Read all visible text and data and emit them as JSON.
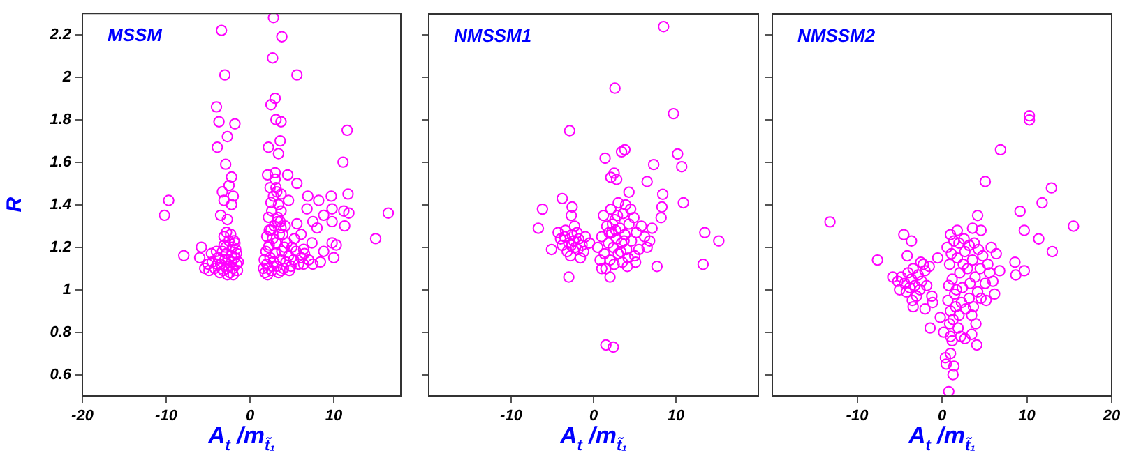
{
  "chart_data": [
    {
      "type": "scatter",
      "title": "MSSM",
      "xlabel": "A$_{t}$ /m$_{t̃₁}$",
      "ylabel": "R",
      "xlim": [
        -20,
        18
      ],
      "ylim": [
        0.5,
        2.3
      ],
      "xticks": [
        -20,
        -10,
        0,
        10
      ],
      "yticks": [
        0.6,
        0.8,
        1,
        1.2,
        1.4,
        1.6,
        1.8,
        2,
        2.2
      ],
      "grid": false,
      "legend": false,
      "marker": "circle",
      "series": [
        {
          "color": "#ff00ff",
          "x": [
            -3.4,
            2.8,
            3.8,
            2.7,
            -3.0,
            5.6,
            -4.0,
            3.0,
            2.5,
            -3.7,
            -1.8,
            3.1,
            3.7,
            -2.7,
            11.6,
            -3.9,
            2.2,
            3.6,
            3.4,
            -2.9,
            11.1,
            -2.2,
            2.1,
            4.5,
            3.0,
            -9.7,
            -10.2,
            -3.3,
            -2.5,
            -2.0,
            -3.1,
            -3.5,
            -2.7,
            -2.2,
            5.6,
            6.9,
            8.2,
            9.7,
            4.6,
            11.7,
            16.5,
            9.8,
            11.2,
            11.8,
            6.8,
            8.8,
            9.8,
            11.3,
            7.5,
            8.0,
            5.6,
            6.1,
            3.7,
            2.2,
            3.3,
            2.3,
            3.7,
            3.7,
            2.5,
            3.1,
            15.0,
            9.8,
            10.3,
            8.8,
            7.4,
            6.4,
            10.0,
            8.4,
            7.5,
            6.4,
            -7.9,
            -5.8,
            -6.0,
            -5.4,
            -2.8,
            -3.1,
            -1.8,
            -4.5,
            -4.2,
            -3.8,
            -3.5,
            -3.2,
            -3.0,
            -2.8,
            -2.6,
            -2.4,
            -2.2,
            -2.0,
            -1.8,
            -1.6,
            -1.5,
            -1.7,
            -2.1,
            -2.5,
            -2.9,
            -3.3,
            -3.6,
            -2.7,
            -2.0,
            -1.4,
            -3.9,
            -4.6,
            -5.0,
            -4.0,
            -3.1,
            -2.3,
            -1.9,
            -2.6,
            -3.4,
            -2.8,
            -2.2,
            -1.6,
            -4.9,
            1.8,
            2.0,
            2.2,
            2.4,
            2.6,
            2.8,
            3.0,
            3.2,
            3.4,
            3.6,
            3.8,
            4.0,
            4.3,
            4.6,
            4.9,
            5.2,
            5.5,
            5.8,
            6.1,
            1.7,
            1.9,
            2.3,
            2.7,
            3.1,
            3.5,
            2.5,
            2.9,
            3.3,
            2.6,
            3.4,
            2.8,
            3.2,
            2.4,
            3.0,
            2.2,
            4.1,
            4.4,
            5.0,
            5.3,
            3.7,
            4.7,
            2.1,
            3.9,
            2.0,
            1.6,
            6.5,
            7.0,
            4.2,
            3.6
          ],
          "values": [
            2.22,
            2.28,
            2.19,
            2.09,
            2.01,
            2.01,
            1.86,
            1.9,
            1.87,
            1.79,
            1.78,
            1.8,
            1.79,
            1.72,
            1.75,
            1.67,
            1.67,
            1.7,
            1.64,
            1.59,
            1.6,
            1.53,
            1.54,
            1.54,
            1.55,
            1.42,
            1.35,
            1.46,
            1.49,
            1.44,
            1.42,
            1.35,
            1.33,
            1.4,
            1.5,
            1.44,
            1.42,
            1.44,
            1.42,
            1.45,
            1.36,
            1.38,
            1.37,
            1.36,
            1.38,
            1.35,
            1.32,
            1.3,
            1.32,
            1.29,
            1.31,
            1.26,
            1.37,
            1.34,
            1.32,
            1.28,
            1.29,
            1.45,
            1.41,
            1.48,
            1.24,
            1.22,
            1.21,
            1.18,
            1.22,
            1.19,
            1.15,
            1.13,
            1.12,
            1.12,
            1.16,
            1.2,
            1.15,
            1.1,
            1.27,
            1.21,
            1.22,
            1.13,
            1.1,
            1.15,
            1.12,
            1.09,
            1.14,
            1.17,
            1.11,
            1.08,
            1.13,
            1.1,
            1.15,
            1.12,
            1.09,
            1.19,
            1.2,
            1.23,
            1.2,
            1.18,
            1.08,
            1.07,
            1.07,
            1.13,
            1.12,
            1.17,
            1.12,
            1.18,
            1.25,
            1.26,
            1.23,
            1.14,
            1.1,
            1.1,
            1.16,
            1.17,
            1.09,
            1.08,
            1.12,
            1.1,
            1.15,
            1.09,
            1.13,
            1.17,
            1.11,
            1.08,
            1.14,
            1.18,
            1.1,
            1.13,
            1.16,
            1.11,
            1.14,
            1.18,
            1.12,
            1.15,
            1.14,
            1.18,
            1.21,
            1.24,
            1.22,
            1.26,
            1.28,
            1.3,
            1.34,
            1.37,
            1.4,
            1.44,
            1.46,
            1.48,
            1.52,
            1.2,
            1.2,
            1.22,
            1.2,
            1.24,
            1.09,
            1.09,
            1.07,
            1.26,
            1.25,
            1.1,
            1.17,
            1.14,
            1.3,
            1.32
          ]
        }
      ]
    },
    {
      "type": "scatter",
      "title": "NMSSM1",
      "xlabel": "A$_{t}$ /m$_{t̃₁}$",
      "xlim": [
        -20,
        20
      ],
      "ylim": [
        0.5,
        2.3
      ],
      "xticks": [
        -10,
        0,
        10
      ],
      "yticks": [
        0.6,
        0.8,
        1,
        1.2,
        1.4,
        1.6,
        1.8,
        2,
        2.2
      ],
      "tick_labels": "x",
      "grid": false,
      "legend": false,
      "marker": "circle",
      "series": [
        {
          "color": "#ff00ff",
          "x": [
            8.5,
            2.6,
            9.7,
            -2.9,
            3.4,
            3.8,
            1.4,
            10.2,
            7.3,
            10.7,
            2.1,
            2.5,
            2.8,
            6.5,
            8.4,
            -3.8,
            4.3,
            10.9,
            -6.2,
            -2.6,
            -2.7,
            -6.7,
            -4.3,
            -5.1,
            13.5,
            15.2,
            13.3,
            7.7,
            -3.0,
            2.0,
            1.5,
            2.4,
            8.2,
            7.1,
            8.3,
            6.5,
            6.8,
            5.1,
            4.1,
            1.0,
            -3.5,
            -3.0,
            -2.6,
            -2.2,
            -1.8,
            -1.4,
            -3.2,
            -2.4,
            -2.0,
            -1.2,
            -3.8,
            -2.8,
            -1.6,
            -2.3,
            -1.0,
            -3.4,
            -4.0,
            -1.9,
            -2.7,
            -0.5,
            0.5,
            1.0,
            1.3,
            1.6,
            1.8,
            2.0,
            2.2,
            2.4,
            2.6,
            2.8,
            3.0,
            3.2,
            3.4,
            3.6,
            3.8,
            4.0,
            4.3,
            4.6,
            4.9,
            5.2,
            5.5,
            5.8,
            1.2,
            2.1,
            3.0,
            3.9,
            4.5,
            5.0,
            2.5,
            3.5,
            1.5,
            4.2,
            0.8,
            2.9,
            2.3,
            3.3,
            1.9,
            2.7,
            3.7,
            6.2
          ],
          "values": [
            2.24,
            1.95,
            1.83,
            1.75,
            1.65,
            1.66,
            1.62,
            1.64,
            1.59,
            1.58,
            1.53,
            1.55,
            1.52,
            1.51,
            1.45,
            1.43,
            1.46,
            1.41,
            1.38,
            1.39,
            1.35,
            1.29,
            1.27,
            1.19,
            1.27,
            1.23,
            1.12,
            1.11,
            1.06,
            1.06,
            0.74,
            0.73,
            1.34,
            1.29,
            1.39,
            1.2,
            1.23,
            1.13,
            1.11,
            1.1,
            1.25,
            1.22,
            1.26,
            1.2,
            1.24,
            1.21,
            1.18,
            1.23,
            1.27,
            1.18,
            1.21,
            1.16,
            1.15,
            1.3,
            1.25,
            1.28,
            1.24,
            1.19,
            1.21,
            1.22,
            1.2,
            1.25,
            1.17,
            1.3,
            1.22,
            1.14,
            1.27,
            1.2,
            1.33,
            1.24,
            1.17,
            1.29,
            1.22,
            1.36,
            1.26,
            1.19,
            1.31,
            1.23,
            1.34,
            1.27,
            1.19,
            1.3,
            1.35,
            1.38,
            1.41,
            1.4,
            1.38,
            1.16,
            1.12,
            1.13,
            1.1,
            1.15,
            1.14,
            1.35,
            1.31,
            1.18,
            1.27,
            1.28,
            1.23,
            1.25
          ]
        }
      ]
    },
    {
      "type": "scatter",
      "title": "NMSSM2",
      "xlabel": "A$_{t}$ /m$_{t̃₁}$",
      "xlim": [
        -20,
        20
      ],
      "ylim": [
        0.5,
        2.3
      ],
      "xticks": [
        -10,
        0,
        10,
        20
      ],
      "yticks": [
        0.6,
        0.8,
        1,
        1.2,
        1.4,
        1.6,
        1.8,
        2,
        2.2
      ],
      "tick_labels": "x",
      "grid": false,
      "legend": false,
      "marker": "circle",
      "series": [
        {
          "color": "#ff00ff",
          "x": [
            10.3,
            10.3,
            6.9,
            5.1,
            12.9,
            11.8,
            9.2,
            4.2,
            -13.2,
            15.5,
            9.7,
            3.6,
            4.6,
            1.8,
            1.0,
            -4.5,
            -3.6,
            11.4,
            13.0,
            -7.6,
            8.6,
            9.7,
            8.7,
            6.8,
            6.2,
            5.2,
            -5.0,
            -3.4,
            -2.0,
            -1.4,
            -0.2,
            4.0,
            4.1,
            0.2,
            1.2,
            0.4,
            1.0,
            1.4,
            1.3,
            0.8,
            0.5,
            2.7,
            3.5,
            -1.2,
            -1.1,
            -5.8,
            -0.5,
            -2.5,
            -4.1,
            -4.8,
            -4.4,
            -4.0,
            -3.6,
            -3.2,
            -2.8,
            -2.4,
            -2.0,
            -4.2,
            -3.4,
            -2.6,
            -3.0,
            -1.8,
            -5.2,
            -3.8,
            -2.2,
            -1.5,
            -3.5,
            0.6,
            0.9,
            1.2,
            1.5,
            1.8,
            2.1,
            2.4,
            2.7,
            3.0,
            3.3,
            3.6,
            3.9,
            4.2,
            4.5,
            4.8,
            5.1,
            5.4,
            0.7,
            1.0,
            1.3,
            1.6,
            2.0,
            2.3,
            2.8,
            3.2,
            3.7,
            0.8,
            1.1,
            1.4,
            2.0,
            2.6,
            3.2,
            3.8,
            4.3,
            1.7,
            2.5,
            3.5,
            1.9,
            0.9,
            4.6,
            5.6,
            6.0,
            6.4,
            5.8,
            1.0,
            2.2
          ],
          "values": [
            1.82,
            1.8,
            1.66,
            1.51,
            1.48,
            1.41,
            1.37,
            1.35,
            1.32,
            1.3,
            1.28,
            1.29,
            1.28,
            1.28,
            1.26,
            1.26,
            1.23,
            1.24,
            1.18,
            1.14,
            1.13,
            1.09,
            1.07,
            1.09,
            0.98,
            0.95,
            1.0,
            0.92,
            0.91,
            0.82,
            0.87,
            0.84,
            0.74,
            0.8,
            0.76,
            0.68,
            0.7,
            0.64,
            0.6,
            0.52,
            0.65,
            0.77,
            0.79,
            0.97,
            0.94,
            1.06,
            1.15,
            1.13,
            1.16,
            1.06,
            1.03,
            1.08,
            1.05,
            1.02,
            1.07,
            1.04,
            1.09,
            0.99,
            1.1,
            1.0,
            0.97,
            1.02,
            1.04,
            1.01,
            1.12,
            1.11,
            0.95,
            1.2,
            1.12,
            1.05,
            0.98,
            1.15,
            1.08,
            1.01,
            1.18,
            1.1,
            1.03,
            1.14,
            1.06,
            0.99,
            1.1,
            1.16,
            1.03,
            1.12,
            0.95,
            0.9,
            0.86,
            0.92,
            0.88,
            0.94,
            0.91,
            0.96,
            0.92,
            1.02,
            1.17,
            1.23,
            1.22,
            1.24,
            1.21,
            1.22,
            1.19,
            1.0,
            1.12,
            0.88,
            0.82,
            0.84,
            0.96,
            1.08,
            1.04,
            1.17,
            1.2,
            0.78,
            0.78
          ]
        }
      ]
    }
  ]
}
